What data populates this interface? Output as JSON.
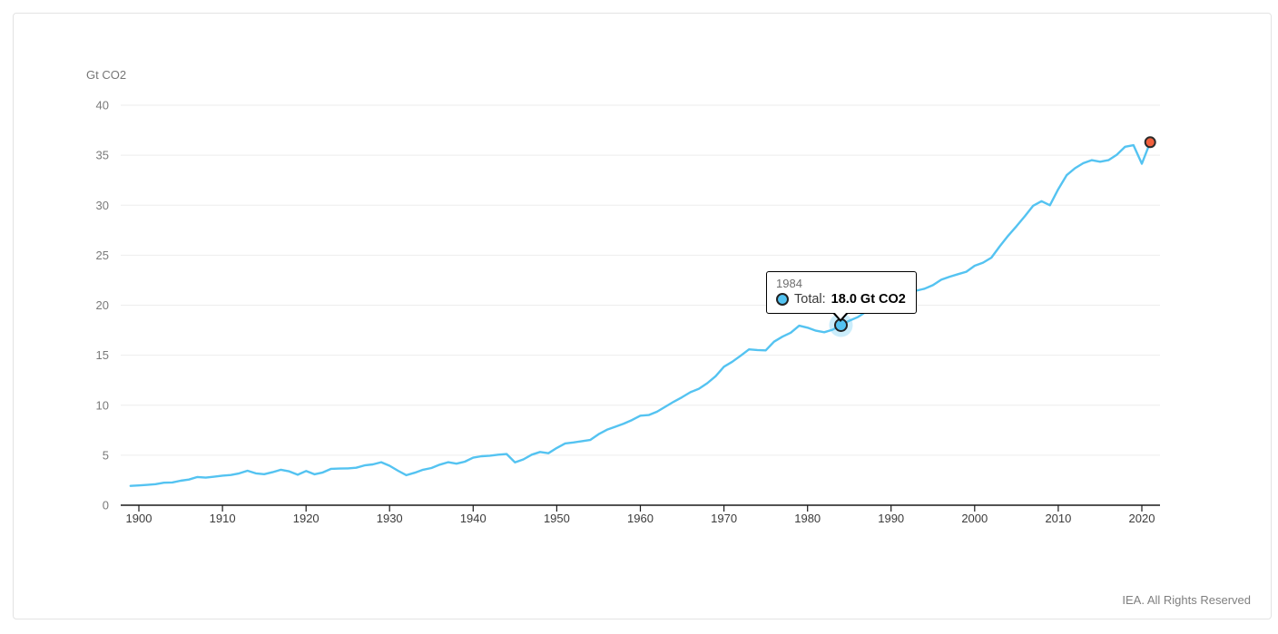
{
  "header": {
    "y_axis_title": "Gt CO2"
  },
  "tooltip": {
    "year": "1984",
    "series_label": "Total:",
    "value_text": "18.0 Gt CO2"
  },
  "footer": {
    "text": "IEA. All Rights Reserved"
  },
  "colors": {
    "line": "#54c3f1",
    "halo": "rgba(84,195,241,0.3)",
    "marker_fill": "#54c3f1",
    "marker_stroke": "#222222",
    "endpoint_fill": "#f2603d",
    "endpoint_stroke": "#2b2b2b",
    "grid": "#ededed",
    "axis": "#1a1a1a",
    "y_tick_text": "#7a7a7a",
    "x_tick_text": "#3b3b3b"
  },
  "chart_data": {
    "type": "line",
    "title": "",
    "xlabel": "",
    "ylabel": "Gt CO2",
    "ylim": [
      0,
      40
    ],
    "y_ticks": [
      0,
      5,
      10,
      15,
      20,
      25,
      30,
      35,
      40
    ],
    "x_ticks": [
      1900,
      1910,
      1920,
      1930,
      1940,
      1950,
      1960,
      1970,
      1980,
      1990,
      2000,
      2010,
      2020
    ],
    "grid": "horizontal",
    "legend": "none",
    "series": [
      {
        "name": "Total",
        "years_start": 1899,
        "values": [
          1.93,
          1.98,
          2.03,
          2.1,
          2.25,
          2.28,
          2.45,
          2.57,
          2.82,
          2.76,
          2.85,
          2.96,
          3.02,
          3.18,
          3.45,
          3.18,
          3.1,
          3.3,
          3.55,
          3.38,
          3.05,
          3.42,
          3.09,
          3.27,
          3.64,
          3.66,
          3.68,
          3.75,
          3.98,
          4.08,
          4.3,
          3.95,
          3.45,
          3.0,
          3.25,
          3.55,
          3.72,
          4.05,
          4.3,
          4.15,
          4.35,
          4.75,
          4.9,
          4.95,
          5.05,
          5.12,
          4.28,
          4.58,
          5.05,
          5.32,
          5.2,
          5.72,
          6.18,
          6.28,
          6.4,
          6.52,
          7.1,
          7.55,
          7.85,
          8.15,
          8.52,
          8.95,
          9.02,
          9.35,
          9.85,
          10.35,
          10.8,
          11.3,
          11.65,
          12.2,
          12.9,
          13.85,
          14.35,
          14.95,
          15.58,
          15.52,
          15.48,
          16.35,
          16.85,
          17.25,
          17.95,
          17.75,
          17.45,
          17.3,
          17.55,
          18.0,
          18.45,
          18.8,
          19.35,
          20.05,
          20.5,
          20.7,
          21.3,
          21.4,
          21.45,
          21.65,
          22.0,
          22.55,
          22.85,
          23.1,
          23.35,
          23.95,
          24.25,
          24.75,
          25.9,
          26.95,
          27.9,
          28.9,
          29.95,
          30.4,
          30.0,
          31.6,
          33.0,
          33.7,
          34.2,
          34.5,
          34.35,
          34.5,
          35.05,
          35.85,
          36.0,
          34.15,
          36.3
        ]
      }
    ],
    "highlight_point": {
      "year": 1984,
      "value": 18.0
    },
    "end_point": {
      "year": 2021,
      "value": 36.3
    }
  }
}
